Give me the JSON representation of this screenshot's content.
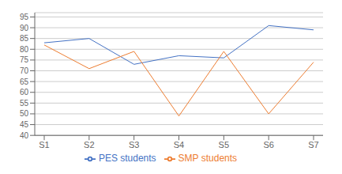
{
  "chart_data": {
    "type": "line",
    "categories": [
      "S1",
      "S2",
      "S3",
      "S4",
      "S5",
      "S6",
      "S7"
    ],
    "series": [
      {
        "name": "PES students",
        "color": "#4472C4",
        "values": [
          83,
          85,
          73,
          77,
          76,
          91,
          89
        ]
      },
      {
        "name": "SMP students",
        "color": "#ED7D31",
        "values": [
          82,
          71,
          79,
          49,
          79,
          50,
          74
        ]
      }
    ],
    "ylim": [
      40,
      97
    ],
    "yticks": [
      40,
      45,
      50,
      55,
      60,
      65,
      70,
      75,
      80,
      85,
      90,
      95
    ],
    "grid": true,
    "legend": "bottom"
  }
}
